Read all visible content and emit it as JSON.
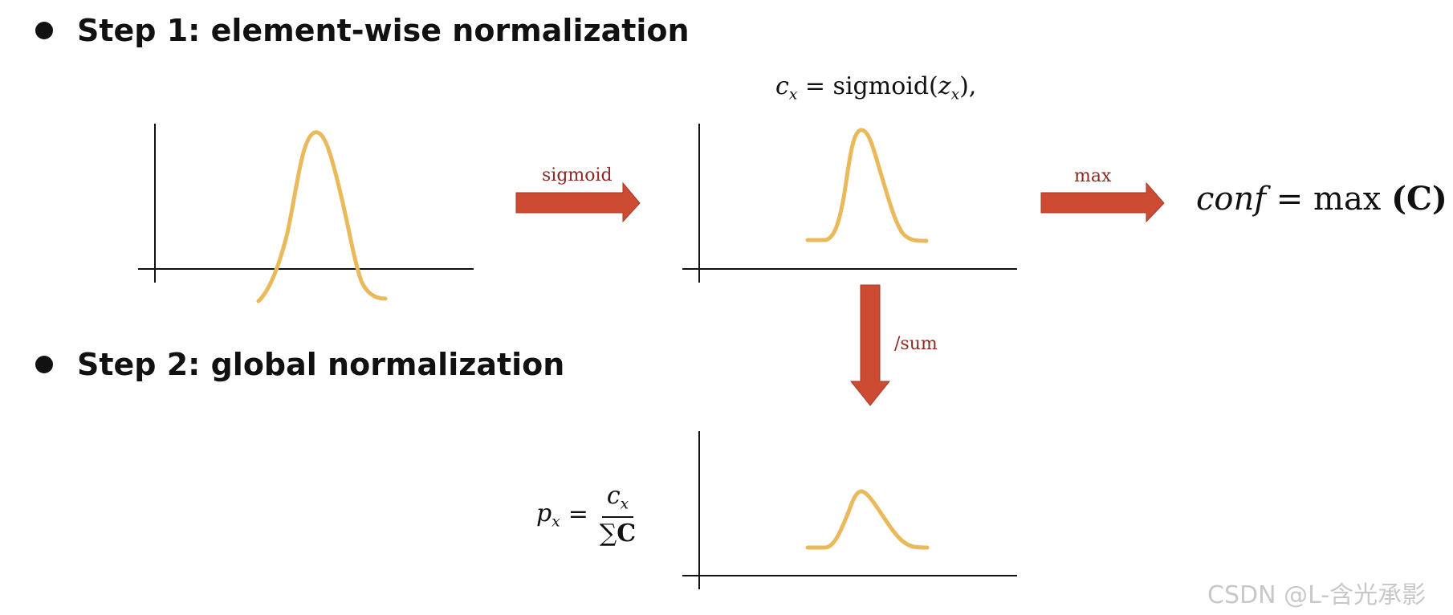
{
  "steps": {
    "step1": "Step 1: element-wise normalization",
    "step2": "Step 2: global normalization"
  },
  "formulas": {
    "sigmoid": {
      "lhs": "c",
      "lhs_sub": "x",
      "eq": "=",
      "func": "sigmoid(",
      "arg": "z",
      "arg_sub": "x",
      "close": "),"
    },
    "conf": {
      "lhs": "conf",
      "eq": "=",
      "func": "max",
      "arg": "(C)"
    },
    "px": {
      "lhs": "p",
      "lhs_sub": "x",
      "eq": "=",
      "num": "c",
      "num_sub": "x",
      "den_sum": "∑",
      "den_var": "C"
    }
  },
  "arrows": {
    "sigmoid": "sigmoid",
    "max": "max",
    "sum": "/sum"
  },
  "colors": {
    "curve": "#eab95b",
    "arrow": "#cc4b32",
    "arrow_label": "#8b2a22",
    "axis": "#111111"
  },
  "watermark": "CSDN @L-含光承影"
}
